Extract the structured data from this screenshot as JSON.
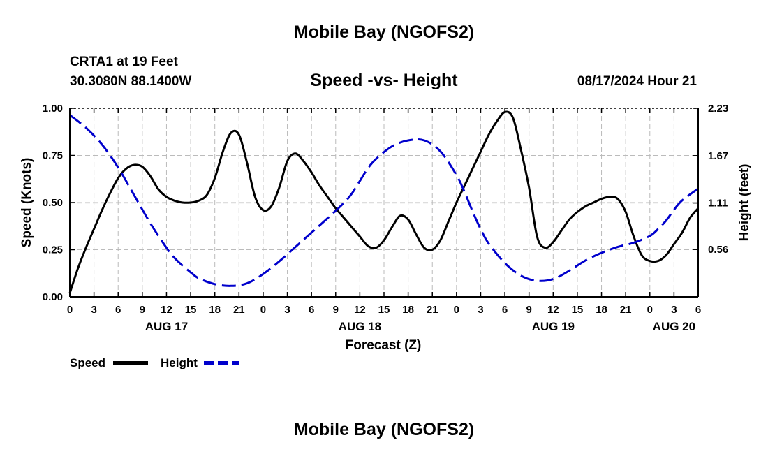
{
  "page": {
    "title_top": "Mobile Bay (NGOFS2)",
    "title_bottom": "Mobile Bay (NGOFS2)",
    "station": "CRTA1 at 19 Feet",
    "coords": "30.3080N  88.1400W",
    "subtitle": "Speed -vs- Height",
    "timestamp": "08/17/2024 Hour 21"
  },
  "chart_data": {
    "type": "line",
    "title": "Speed -vs- Height",
    "xlabel": "Forecast (Z)",
    "ylabel": "Speed (Knots)",
    "y2label": "Height (feet)",
    "x_range": [
      0,
      78
    ],
    "ylim": [
      0,
      1.0
    ],
    "y2lim": [
      0,
      2.23
    ],
    "x_ticks": [
      {
        "x": 0,
        "label": "0"
      },
      {
        "x": 3,
        "label": "3"
      },
      {
        "x": 6,
        "label": "6"
      },
      {
        "x": 9,
        "label": "9"
      },
      {
        "x": 12,
        "label": "12"
      },
      {
        "x": 15,
        "label": "15"
      },
      {
        "x": 18,
        "label": "18"
      },
      {
        "x": 21,
        "label": "21"
      },
      {
        "x": 24,
        "label": "0"
      },
      {
        "x": 27,
        "label": "3"
      },
      {
        "x": 30,
        "label": "6"
      },
      {
        "x": 33,
        "label": "9"
      },
      {
        "x": 36,
        "label": "12"
      },
      {
        "x": 39,
        "label": "15"
      },
      {
        "x": 42,
        "label": "18"
      },
      {
        "x": 45,
        "label": "21"
      },
      {
        "x": 48,
        "label": "0"
      },
      {
        "x": 51,
        "label": "3"
      },
      {
        "x": 54,
        "label": "6"
      },
      {
        "x": 57,
        "label": "9"
      },
      {
        "x": 60,
        "label": "12"
      },
      {
        "x": 63,
        "label": "15"
      },
      {
        "x": 66,
        "label": "18"
      },
      {
        "x": 69,
        "label": "21"
      },
      {
        "x": 72,
        "label": "0"
      },
      {
        "x": 75,
        "label": "3"
      },
      {
        "x": 78,
        "label": "6"
      }
    ],
    "date_labels": [
      {
        "x": 12,
        "label": "AUG 17"
      },
      {
        "x": 36,
        "label": "AUG 18"
      },
      {
        "x": 60,
        "label": "AUG 19"
      },
      {
        "x": 75,
        "label": "AUG 20"
      }
    ],
    "y_ticks": [
      {
        "v": 0.0,
        "label": "0.00"
      },
      {
        "v": 0.25,
        "label": "0.25"
      },
      {
        "v": 0.5,
        "label": "0.50"
      },
      {
        "v": 0.75,
        "label": "0.75"
      },
      {
        "v": 1.0,
        "label": "1.00"
      }
    ],
    "y2_ticks": [
      {
        "v": 0.56,
        "label": "0.56"
      },
      {
        "v": 1.11,
        "label": "1.11"
      },
      {
        "v": 1.67,
        "label": "1.67"
      },
      {
        "v": 2.23,
        "label": "2.23"
      }
    ],
    "series": [
      {
        "name": "Speed",
        "axis": "left",
        "color": "#000000",
        "dash": "solid",
        "x": [
          0,
          1,
          2,
          3,
          4,
          5,
          6,
          7,
          8,
          9,
          10,
          11,
          12,
          13,
          14,
          15,
          16,
          17,
          18,
          19,
          20,
          21,
          22,
          23,
          24,
          25,
          26,
          27,
          28,
          29,
          30,
          31,
          32,
          33,
          34,
          35,
          36,
          37,
          38,
          39,
          40,
          41,
          42,
          43,
          44,
          45,
          46,
          47,
          48,
          49,
          50,
          51,
          52,
          53,
          54,
          55,
          56,
          57,
          58,
          59,
          60,
          61,
          62,
          63,
          64,
          65,
          66,
          67,
          68,
          69,
          70,
          71,
          72,
          73,
          74,
          75,
          76,
          77,
          78
        ],
        "values": [
          0.02,
          0.15,
          0.26,
          0.36,
          0.46,
          0.55,
          0.63,
          0.68,
          0.7,
          0.69,
          0.64,
          0.57,
          0.53,
          0.51,
          0.5,
          0.5,
          0.51,
          0.54,
          0.63,
          0.77,
          0.87,
          0.86,
          0.71,
          0.53,
          0.46,
          0.48,
          0.58,
          0.72,
          0.76,
          0.72,
          0.66,
          0.59,
          0.53,
          0.47,
          0.42,
          0.37,
          0.32,
          0.27,
          0.26,
          0.3,
          0.37,
          0.43,
          0.41,
          0.33,
          0.26,
          0.25,
          0.3,
          0.4,
          0.5,
          0.59,
          0.68,
          0.77,
          0.86,
          0.93,
          0.98,
          0.95,
          0.78,
          0.58,
          0.32,
          0.26,
          0.29,
          0.35,
          0.41,
          0.45,
          0.48,
          0.5,
          0.52,
          0.53,
          0.52,
          0.45,
          0.32,
          0.22,
          0.19,
          0.19,
          0.22,
          0.28,
          0.34,
          0.42,
          0.47
        ]
      },
      {
        "name": "Height",
        "axis": "right",
        "color": "#0000cc",
        "dash": "dashed",
        "x": [
          0,
          2,
          4,
          6,
          8,
          10,
          12,
          13,
          14,
          15,
          16,
          18,
          20,
          22,
          24,
          26,
          28,
          30,
          32,
          34,
          35,
          36,
          37,
          38,
          40,
          42,
          44,
          46,
          48,
          49,
          50,
          51,
          52,
          54,
          56,
          58,
          60,
          62,
          64,
          66,
          68,
          70,
          72,
          73,
          74,
          75,
          76,
          78
        ],
        "values": [
          2.15,
          2.0,
          1.8,
          1.53,
          1.2,
          0.87,
          0.58,
          0.46,
          0.37,
          0.29,
          0.22,
          0.15,
          0.13,
          0.16,
          0.27,
          0.42,
          0.59,
          0.76,
          0.93,
          1.11,
          1.22,
          1.37,
          1.52,
          1.63,
          1.78,
          1.85,
          1.85,
          1.72,
          1.44,
          1.24,
          1.01,
          0.8,
          0.63,
          0.4,
          0.25,
          0.19,
          0.21,
          0.31,
          0.43,
          0.52,
          0.59,
          0.64,
          0.72,
          0.8,
          0.9,
          1.03,
          1.14,
          1.28
        ]
      }
    ],
    "legend": {
      "position": "bottom-left",
      "items": [
        "Speed",
        "Height"
      ]
    },
    "grid": true
  }
}
